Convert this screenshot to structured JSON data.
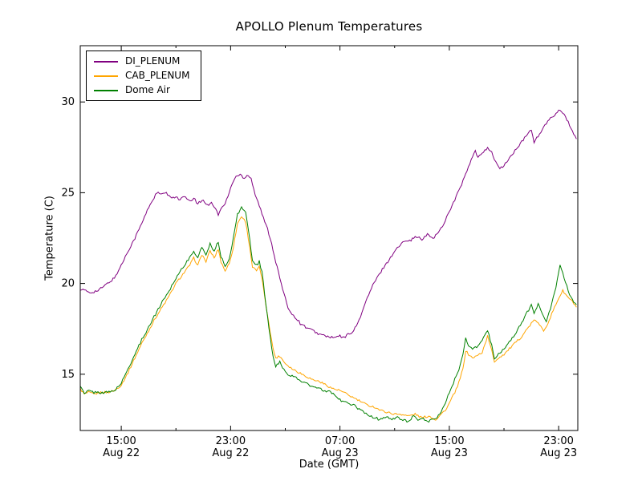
{
  "chart_data": {
    "type": "line",
    "title": "APOLLO Plenum Temperatures",
    "xlabel": "Date (GMT)",
    "ylabel": "Temperature (C)",
    "x_unit": "hours after Aug 22 12:00 GMT",
    "xlim": [
      0,
      36.4
    ],
    "ylim": [
      11.9,
      33.1
    ],
    "grid": false,
    "legend_position": "upper left",
    "y_ticks": [
      15,
      20,
      25,
      30
    ],
    "x_ticks": [
      {
        "pos": 3,
        "time": "15:00",
        "date": "Aug 22"
      },
      {
        "pos": 11,
        "time": "23:00",
        "date": "Aug 22"
      },
      {
        "pos": 19,
        "time": "07:00",
        "date": "Aug 23"
      },
      {
        "pos": 27,
        "time": "15:00",
        "date": "Aug 23"
      },
      {
        "pos": 35,
        "time": "23:00",
        "date": "Aug 23"
      }
    ],
    "x_minor_ticks": [
      7,
      15,
      23,
      31
    ],
    "series": [
      {
        "name": "DI_PLENUM",
        "color": "#800080",
        "jitter": 0.07,
        "points": [
          [
            0,
            19.7
          ],
          [
            0.7,
            19.5
          ],
          [
            1.3,
            19.6
          ],
          [
            2,
            20.0
          ],
          [
            2.5,
            20.3
          ],
          [
            3,
            21.0
          ],
          [
            3.5,
            21.8
          ],
          [
            4,
            22.5
          ],
          [
            4.5,
            23.3
          ],
          [
            5,
            24.2
          ],
          [
            5.3,
            24.6
          ],
          [
            5.6,
            25.0
          ],
          [
            6,
            24.9
          ],
          [
            6.3,
            25.0
          ],
          [
            6.6,
            24.7
          ],
          [
            7,
            24.8
          ],
          [
            7.3,
            24.6
          ],
          [
            7.6,
            24.8
          ],
          [
            8,
            24.5
          ],
          [
            8.3,
            24.7
          ],
          [
            8.6,
            24.4
          ],
          [
            9,
            24.6
          ],
          [
            9.3,
            24.3
          ],
          [
            9.6,
            24.5
          ],
          [
            9.9,
            24.1
          ],
          [
            10.1,
            23.8
          ],
          [
            10.3,
            24.1
          ],
          [
            10.6,
            24.4
          ],
          [
            10.9,
            25.0
          ],
          [
            11.1,
            25.5
          ],
          [
            11.4,
            25.9
          ],
          [
            11.7,
            26.0
          ],
          [
            12,
            25.8
          ],
          [
            12.2,
            26.0
          ],
          [
            12.5,
            25.8
          ],
          [
            12.8,
            24.9
          ],
          [
            13.1,
            24.3
          ],
          [
            13.4,
            23.6
          ],
          [
            13.7,
            23.0
          ],
          [
            14,
            22.2
          ],
          [
            14.3,
            21.2
          ],
          [
            14.6,
            20.3
          ],
          [
            14.9,
            19.4
          ],
          [
            15.2,
            18.7
          ],
          [
            15.5,
            18.3
          ],
          [
            15.8,
            18.1
          ],
          [
            16.1,
            17.8
          ],
          [
            16.5,
            17.6
          ],
          [
            17,
            17.4
          ],
          [
            17.5,
            17.2
          ],
          [
            18,
            17.1
          ],
          [
            18.5,
            17.0
          ],
          [
            19,
            17.1
          ],
          [
            19.3,
            17.0
          ],
          [
            19.6,
            17.2
          ],
          [
            20,
            17.4
          ],
          [
            20.3,
            17.8
          ],
          [
            20.6,
            18.4
          ],
          [
            21,
            19.2
          ],
          [
            21.4,
            19.9
          ],
          [
            21.8,
            20.4
          ],
          [
            22.2,
            20.9
          ],
          [
            22.6,
            21.3
          ],
          [
            23,
            21.8
          ],
          [
            23.4,
            22.1
          ],
          [
            23.8,
            22.4
          ],
          [
            24.2,
            22.4
          ],
          [
            24.6,
            22.6
          ],
          [
            25,
            22.4
          ],
          [
            25.4,
            22.7
          ],
          [
            25.8,
            22.5
          ],
          [
            26.2,
            22.8
          ],
          [
            26.6,
            23.3
          ],
          [
            27,
            24.0
          ],
          [
            27.4,
            24.6
          ],
          [
            27.8,
            25.3
          ],
          [
            28.2,
            26.0
          ],
          [
            28.6,
            26.8
          ],
          [
            28.9,
            27.3
          ],
          [
            29.1,
            26.9
          ],
          [
            29.4,
            27.2
          ],
          [
            29.8,
            27.5
          ],
          [
            30.1,
            27.2
          ],
          [
            30.4,
            26.7
          ],
          [
            30.7,
            26.3
          ],
          [
            31,
            26.5
          ],
          [
            31.4,
            26.9
          ],
          [
            31.8,
            27.3
          ],
          [
            32.2,
            27.7
          ],
          [
            32.6,
            28.1
          ],
          [
            33,
            28.5
          ],
          [
            33.2,
            27.8
          ],
          [
            33.5,
            28.1
          ],
          [
            33.9,
            28.6
          ],
          [
            34.3,
            29.0
          ],
          [
            34.7,
            29.3
          ],
          [
            35.1,
            29.6
          ],
          [
            35.4,
            29.3
          ],
          [
            35.7,
            28.9
          ],
          [
            36,
            28.4
          ],
          [
            36.3,
            27.9
          ]
        ]
      },
      {
        "name": "CAB_PLENUM",
        "color": "#FFA500",
        "jitter": 0.06,
        "points": [
          [
            0,
            14.2
          ],
          [
            0.3,
            13.9
          ],
          [
            0.6,
            14.0
          ],
          [
            1,
            13.9
          ],
          [
            1.5,
            14.0
          ],
          [
            2,
            14.0
          ],
          [
            2.5,
            14.1
          ],
          [
            3,
            14.4
          ],
          [
            3.5,
            15.1
          ],
          [
            4,
            15.9
          ],
          [
            4.5,
            16.7
          ],
          [
            5,
            17.4
          ],
          [
            5.5,
            18.1
          ],
          [
            6,
            18.7
          ],
          [
            6.5,
            19.3
          ],
          [
            7,
            20.0
          ],
          [
            7.5,
            20.5
          ],
          [
            8,
            21.0
          ],
          [
            8.3,
            21.4
          ],
          [
            8.6,
            21.0
          ],
          [
            8.9,
            21.6
          ],
          [
            9.2,
            21.2
          ],
          [
            9.5,
            21.8
          ],
          [
            9.8,
            21.4
          ],
          [
            10.1,
            21.9
          ],
          [
            10.3,
            21.2
          ],
          [
            10.6,
            20.7
          ],
          [
            10.9,
            21.1
          ],
          [
            11.2,
            22.0
          ],
          [
            11.5,
            23.3
          ],
          [
            11.8,
            23.7
          ],
          [
            12.1,
            23.4
          ],
          [
            12.4,
            22.0
          ],
          [
            12.6,
            20.9
          ],
          [
            12.9,
            20.7
          ],
          [
            13.1,
            20.9
          ],
          [
            13.3,
            20.3
          ],
          [
            13.5,
            19.2
          ],
          [
            13.8,
            17.8
          ],
          [
            14.1,
            16.4
          ],
          [
            14.3,
            15.9
          ],
          [
            14.6,
            16.0
          ],
          [
            15,
            15.6
          ],
          [
            15.5,
            15.3
          ],
          [
            16,
            15.1
          ],
          [
            16.5,
            14.9
          ],
          [
            17,
            14.7
          ],
          [
            17.5,
            14.6
          ],
          [
            18,
            14.4
          ],
          [
            18.5,
            14.2
          ],
          [
            19,
            14.1
          ],
          [
            19.5,
            13.9
          ],
          [
            20,
            13.7
          ],
          [
            20.5,
            13.5
          ],
          [
            21,
            13.3
          ],
          [
            21.5,
            13.2
          ],
          [
            22,
            13.0
          ],
          [
            22.5,
            12.9
          ],
          [
            23,
            12.8
          ],
          [
            23.5,
            12.8
          ],
          [
            24,
            12.7
          ],
          [
            24.5,
            12.8
          ],
          [
            25,
            12.6
          ],
          [
            25.5,
            12.7
          ],
          [
            26,
            12.5
          ],
          [
            26.4,
            12.8
          ],
          [
            26.8,
            13.1
          ],
          [
            27.2,
            13.7
          ],
          [
            27.6,
            14.3
          ],
          [
            28,
            15.3
          ],
          [
            28.2,
            16.3
          ],
          [
            28.4,
            16.1
          ],
          [
            28.7,
            15.9
          ],
          [
            29,
            16.0
          ],
          [
            29.4,
            16.2
          ],
          [
            29.8,
            17.1
          ],
          [
            30.1,
            16.3
          ],
          [
            30.3,
            15.7
          ],
          [
            30.6,
            15.9
          ],
          [
            31,
            16.1
          ],
          [
            31.4,
            16.4
          ],
          [
            31.8,
            16.7
          ],
          [
            32.2,
            17.0
          ],
          [
            32.6,
            17.4
          ],
          [
            33,
            17.8
          ],
          [
            33.3,
            18.0
          ],
          [
            33.6,
            17.7
          ],
          [
            33.9,
            17.4
          ],
          [
            34.2,
            17.8
          ],
          [
            34.6,
            18.5
          ],
          [
            35,
            19.2
          ],
          [
            35.3,
            19.6
          ],
          [
            35.6,
            19.3
          ],
          [
            36,
            19.0
          ],
          [
            36.3,
            18.7
          ]
        ]
      },
      {
        "name": "Dome Air",
        "color": "#008000",
        "jitter": 0.07,
        "points": [
          [
            0,
            14.4
          ],
          [
            0.3,
            13.9
          ],
          [
            0.6,
            14.1
          ],
          [
            1,
            14.0
          ],
          [
            1.5,
            14.0
          ],
          [
            2,
            14.0
          ],
          [
            2.5,
            14.1
          ],
          [
            3,
            14.5
          ],
          [
            3.5,
            15.3
          ],
          [
            4,
            16.1
          ],
          [
            4.5,
            16.9
          ],
          [
            5,
            17.6
          ],
          [
            5.5,
            18.3
          ],
          [
            6,
            19.0
          ],
          [
            6.5,
            19.6
          ],
          [
            7,
            20.3
          ],
          [
            7.5,
            20.9
          ],
          [
            8,
            21.4
          ],
          [
            8.3,
            21.8
          ],
          [
            8.6,
            21.4
          ],
          [
            8.9,
            22.0
          ],
          [
            9.2,
            21.6
          ],
          [
            9.5,
            22.2
          ],
          [
            9.8,
            21.8
          ],
          [
            10.1,
            22.3
          ],
          [
            10.3,
            21.5
          ],
          [
            10.6,
            20.9
          ],
          [
            10.9,
            21.4
          ],
          [
            11.2,
            22.5
          ],
          [
            11.5,
            23.8
          ],
          [
            11.8,
            24.2
          ],
          [
            12.1,
            23.9
          ],
          [
            12.4,
            22.5
          ],
          [
            12.6,
            21.2
          ],
          [
            12.9,
            21.0
          ],
          [
            13.1,
            21.2
          ],
          [
            13.3,
            20.6
          ],
          [
            13.5,
            19.4
          ],
          [
            13.8,
            17.5
          ],
          [
            14.1,
            16.0
          ],
          [
            14.3,
            15.4
          ],
          [
            14.6,
            15.7
          ],
          [
            15,
            15.1
          ],
          [
            15.5,
            14.9
          ],
          [
            16,
            14.7
          ],
          [
            16.5,
            14.5
          ],
          [
            17,
            14.3
          ],
          [
            17.5,
            14.2
          ],
          [
            18,
            14.0
          ],
          [
            18.3,
            14.1
          ],
          [
            18.6,
            13.8
          ],
          [
            19,
            13.6
          ],
          [
            19.5,
            13.4
          ],
          [
            20,
            13.3
          ],
          [
            20.5,
            13.0
          ],
          [
            21,
            12.8
          ],
          [
            21.5,
            12.6
          ],
          [
            22,
            12.5
          ],
          [
            22.4,
            12.7
          ],
          [
            22.8,
            12.5
          ],
          [
            23.2,
            12.6
          ],
          [
            23.6,
            12.5
          ],
          [
            24,
            12.4
          ],
          [
            24.4,
            12.7
          ],
          [
            24.7,
            12.4
          ],
          [
            25,
            12.6
          ],
          [
            25.4,
            12.4
          ],
          [
            25.8,
            12.5
          ],
          [
            26.2,
            12.7
          ],
          [
            26.6,
            13.2
          ],
          [
            27,
            14.0
          ],
          [
            27.4,
            14.7
          ],
          [
            27.7,
            15.2
          ],
          [
            28,
            16.1
          ],
          [
            28.2,
            17.0
          ],
          [
            28.4,
            16.6
          ],
          [
            28.7,
            16.4
          ],
          [
            29,
            16.5
          ],
          [
            29.4,
            16.9
          ],
          [
            29.8,
            17.4
          ],
          [
            30.1,
            16.6
          ],
          [
            30.3,
            15.8
          ],
          [
            30.6,
            16.1
          ],
          [
            31,
            16.4
          ],
          [
            31.4,
            16.8
          ],
          [
            31.8,
            17.2
          ],
          [
            32.2,
            17.7
          ],
          [
            32.6,
            18.3
          ],
          [
            33,
            18.8
          ],
          [
            33.2,
            18.3
          ],
          [
            33.5,
            18.9
          ],
          [
            33.8,
            18.4
          ],
          [
            34.1,
            17.9
          ],
          [
            34.4,
            18.6
          ],
          [
            34.8,
            19.8
          ],
          [
            35.1,
            21.0
          ],
          [
            35.4,
            20.3
          ],
          [
            35.7,
            19.6
          ],
          [
            36,
            19.1
          ],
          [
            36.3,
            18.8
          ]
        ]
      }
    ]
  }
}
